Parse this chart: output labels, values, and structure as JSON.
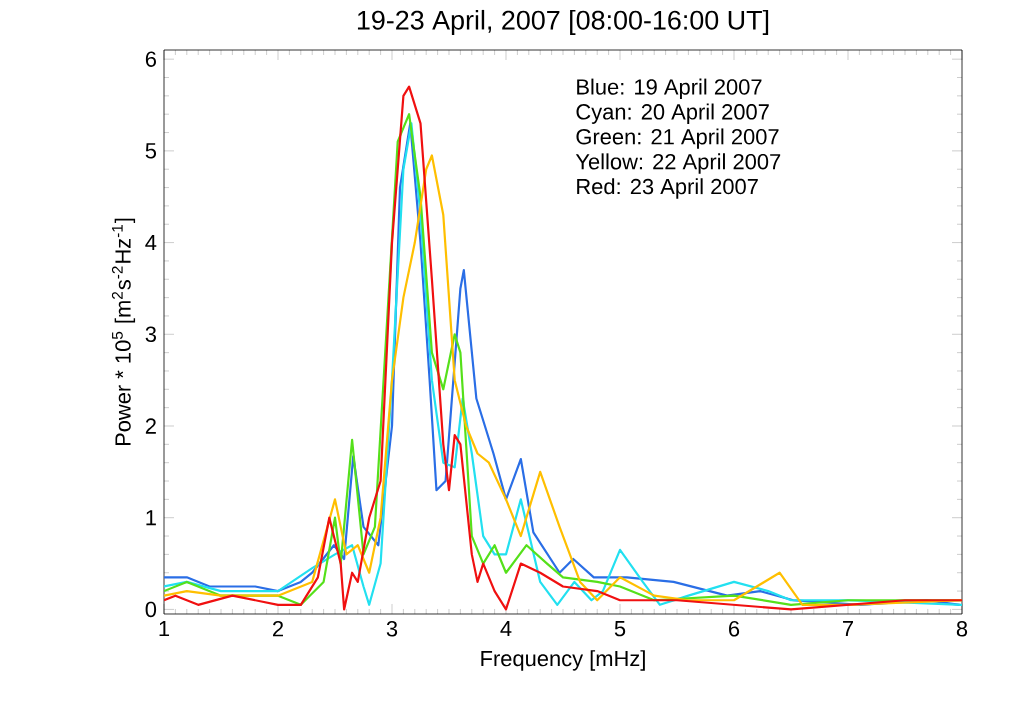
{
  "chart_data": {
    "type": "line",
    "title": "19-23 April, 2007 [08:00-16:00 UT]",
    "xlabel": "Frequency [mHz]",
    "ylabel": "Power * 10$^{5}$ [m$^{2}$s$^{-2}$Hz$^{-1}$]",
    "xlim": [
      1,
      8
    ],
    "ylim": [
      -0.05,
      6.1
    ],
    "xticks": [
      1,
      2,
      3,
      4,
      5,
      6,
      7,
      8
    ],
    "yticks": [
      0,
      1,
      2,
      3,
      4,
      5,
      6
    ],
    "grid": false,
    "marker": "none",
    "line_style": "solid",
    "annotations": [
      "Blue:     19 April 2007",
      "Cyan:      20 April 2007",
      "Green:    21 April 2007",
      "Yellow:    22 April 2007",
      "Red:        23 April 2007"
    ],
    "series": [
      {
        "color": "#2a6ee6",
        "x": [
          1.0,
          1.2,
          1.4,
          1.8,
          2.0,
          2.2,
          2.3,
          2.49,
          2.58,
          2.66,
          2.75,
          2.88,
          3.0,
          3.07,
          3.16,
          3.25,
          3.33,
          3.39,
          3.47,
          3.6,
          3.63,
          3.74,
          3.89,
          4.0,
          4.13,
          4.24,
          4.47,
          4.59,
          4.77,
          5.06,
          5.47,
          5.94,
          6.23,
          6.52,
          7.11,
          7.69,
          7.98
        ],
        "values": [
          0.35,
          0.35,
          0.25,
          0.25,
          0.2,
          0.3,
          0.4,
          0.7,
          0.55,
          1.67,
          0.9,
          0.7,
          2.0,
          4.6,
          5.3,
          4.0,
          2.5,
          1.3,
          1.4,
          3.5,
          3.7,
          2.3,
          1.7,
          1.2,
          1.64,
          0.84,
          0.4,
          0.55,
          0.35,
          0.35,
          0.3,
          0.15,
          0.2,
          0.1,
          0.05,
          0.1,
          0.05
        ]
      },
      {
        "color": "#22e0f0",
        "x": [
          1.0,
          1.2,
          1.5,
          2.0,
          2.3,
          2.5,
          2.65,
          2.75,
          2.8,
          2.9,
          3.0,
          3.1,
          3.17,
          3.25,
          3.35,
          3.45,
          3.55,
          3.62,
          3.7,
          3.8,
          3.9,
          4.0,
          4.13,
          4.3,
          4.45,
          4.6,
          4.75,
          4.85,
          5.0,
          5.2,
          5.35,
          5.6,
          6.0,
          6.3,
          6.5,
          7.0,
          8.0
        ],
        "values": [
          0.25,
          0.3,
          0.2,
          0.2,
          0.45,
          0.6,
          0.7,
          0.25,
          0.05,
          0.5,
          2.5,
          4.8,
          5.3,
          4.3,
          2.5,
          1.6,
          1.55,
          2.3,
          1.7,
          0.8,
          0.6,
          0.6,
          1.2,
          0.3,
          0.05,
          0.3,
          0.1,
          0.2,
          0.65,
          0.3,
          0.05,
          0.15,
          0.3,
          0.2,
          0.1,
          0.1,
          0.05
        ]
      },
      {
        "color": "#55e01a",
        "x": [
          1.0,
          1.2,
          1.5,
          2.0,
          2.2,
          2.4,
          2.5,
          2.55,
          2.65,
          2.75,
          2.85,
          2.95,
          3.05,
          3.15,
          3.25,
          3.35,
          3.45,
          3.55,
          3.6,
          3.7,
          3.8,
          3.9,
          4.0,
          4.18,
          4.36,
          4.5,
          4.8,
          5.0,
          5.3,
          6.0,
          6.5,
          7.0,
          8.0
        ],
        "values": [
          0.2,
          0.3,
          0.15,
          0.15,
          0.05,
          0.3,
          1.0,
          0.5,
          1.85,
          0.6,
          0.9,
          3.0,
          5.1,
          5.4,
          4.5,
          2.8,
          2.4,
          3.0,
          2.8,
          0.8,
          0.5,
          0.7,
          0.4,
          0.7,
          0.5,
          0.35,
          0.3,
          0.25,
          0.1,
          0.15,
          0.05,
          0.1,
          0.1
        ]
      },
      {
        "color": "#ffbf00",
        "x": [
          1.0,
          1.2,
          1.5,
          2.0,
          2.3,
          2.5,
          2.6,
          2.7,
          2.8,
          2.9,
          3.0,
          3.1,
          3.2,
          3.3,
          3.35,
          3.45,
          3.55,
          3.65,
          3.75,
          3.85,
          4.0,
          4.13,
          4.3,
          4.47,
          4.65,
          4.8,
          5.0,
          5.3,
          5.6,
          6.0,
          6.4,
          6.6,
          7.0,
          8.0
        ],
        "values": [
          0.15,
          0.2,
          0.15,
          0.15,
          0.3,
          1.2,
          0.6,
          0.7,
          0.4,
          1.0,
          2.5,
          3.4,
          4.0,
          4.8,
          4.95,
          4.3,
          2.5,
          2.0,
          1.7,
          1.6,
          1.2,
          0.8,
          1.5,
          0.9,
          0.3,
          0.1,
          0.35,
          0.15,
          0.1,
          0.1,
          0.4,
          0.05,
          0.05,
          0.1
        ]
      },
      {
        "color": "#f01010",
        "x": [
          1.0,
          1.1,
          1.3,
          1.6,
          2.0,
          2.2,
          2.35,
          2.45,
          2.55,
          2.58,
          2.65,
          2.7,
          2.8,
          2.9,
          3.0,
          3.1,
          3.15,
          3.25,
          3.35,
          3.45,
          3.5,
          3.55,
          3.6,
          3.7,
          3.75,
          3.8,
          3.9,
          4.0,
          4.13,
          4.3,
          4.5,
          4.8,
          5.0,
          5.5,
          6.0,
          6.5,
          7.0,
          7.5,
          8.0
        ],
        "values": [
          0.1,
          0.15,
          0.05,
          0.15,
          0.05,
          0.05,
          0.35,
          1.0,
          0.5,
          0.0,
          0.4,
          0.3,
          1.0,
          1.4,
          4.0,
          5.6,
          5.7,
          5.3,
          3.6,
          1.8,
          1.3,
          1.9,
          1.8,
          0.6,
          0.3,
          0.5,
          0.2,
          0.0,
          0.5,
          0.4,
          0.25,
          0.2,
          0.1,
          0.1,
          0.05,
          0.0,
          0.05,
          0.1,
          0.1
        ]
      }
    ]
  }
}
